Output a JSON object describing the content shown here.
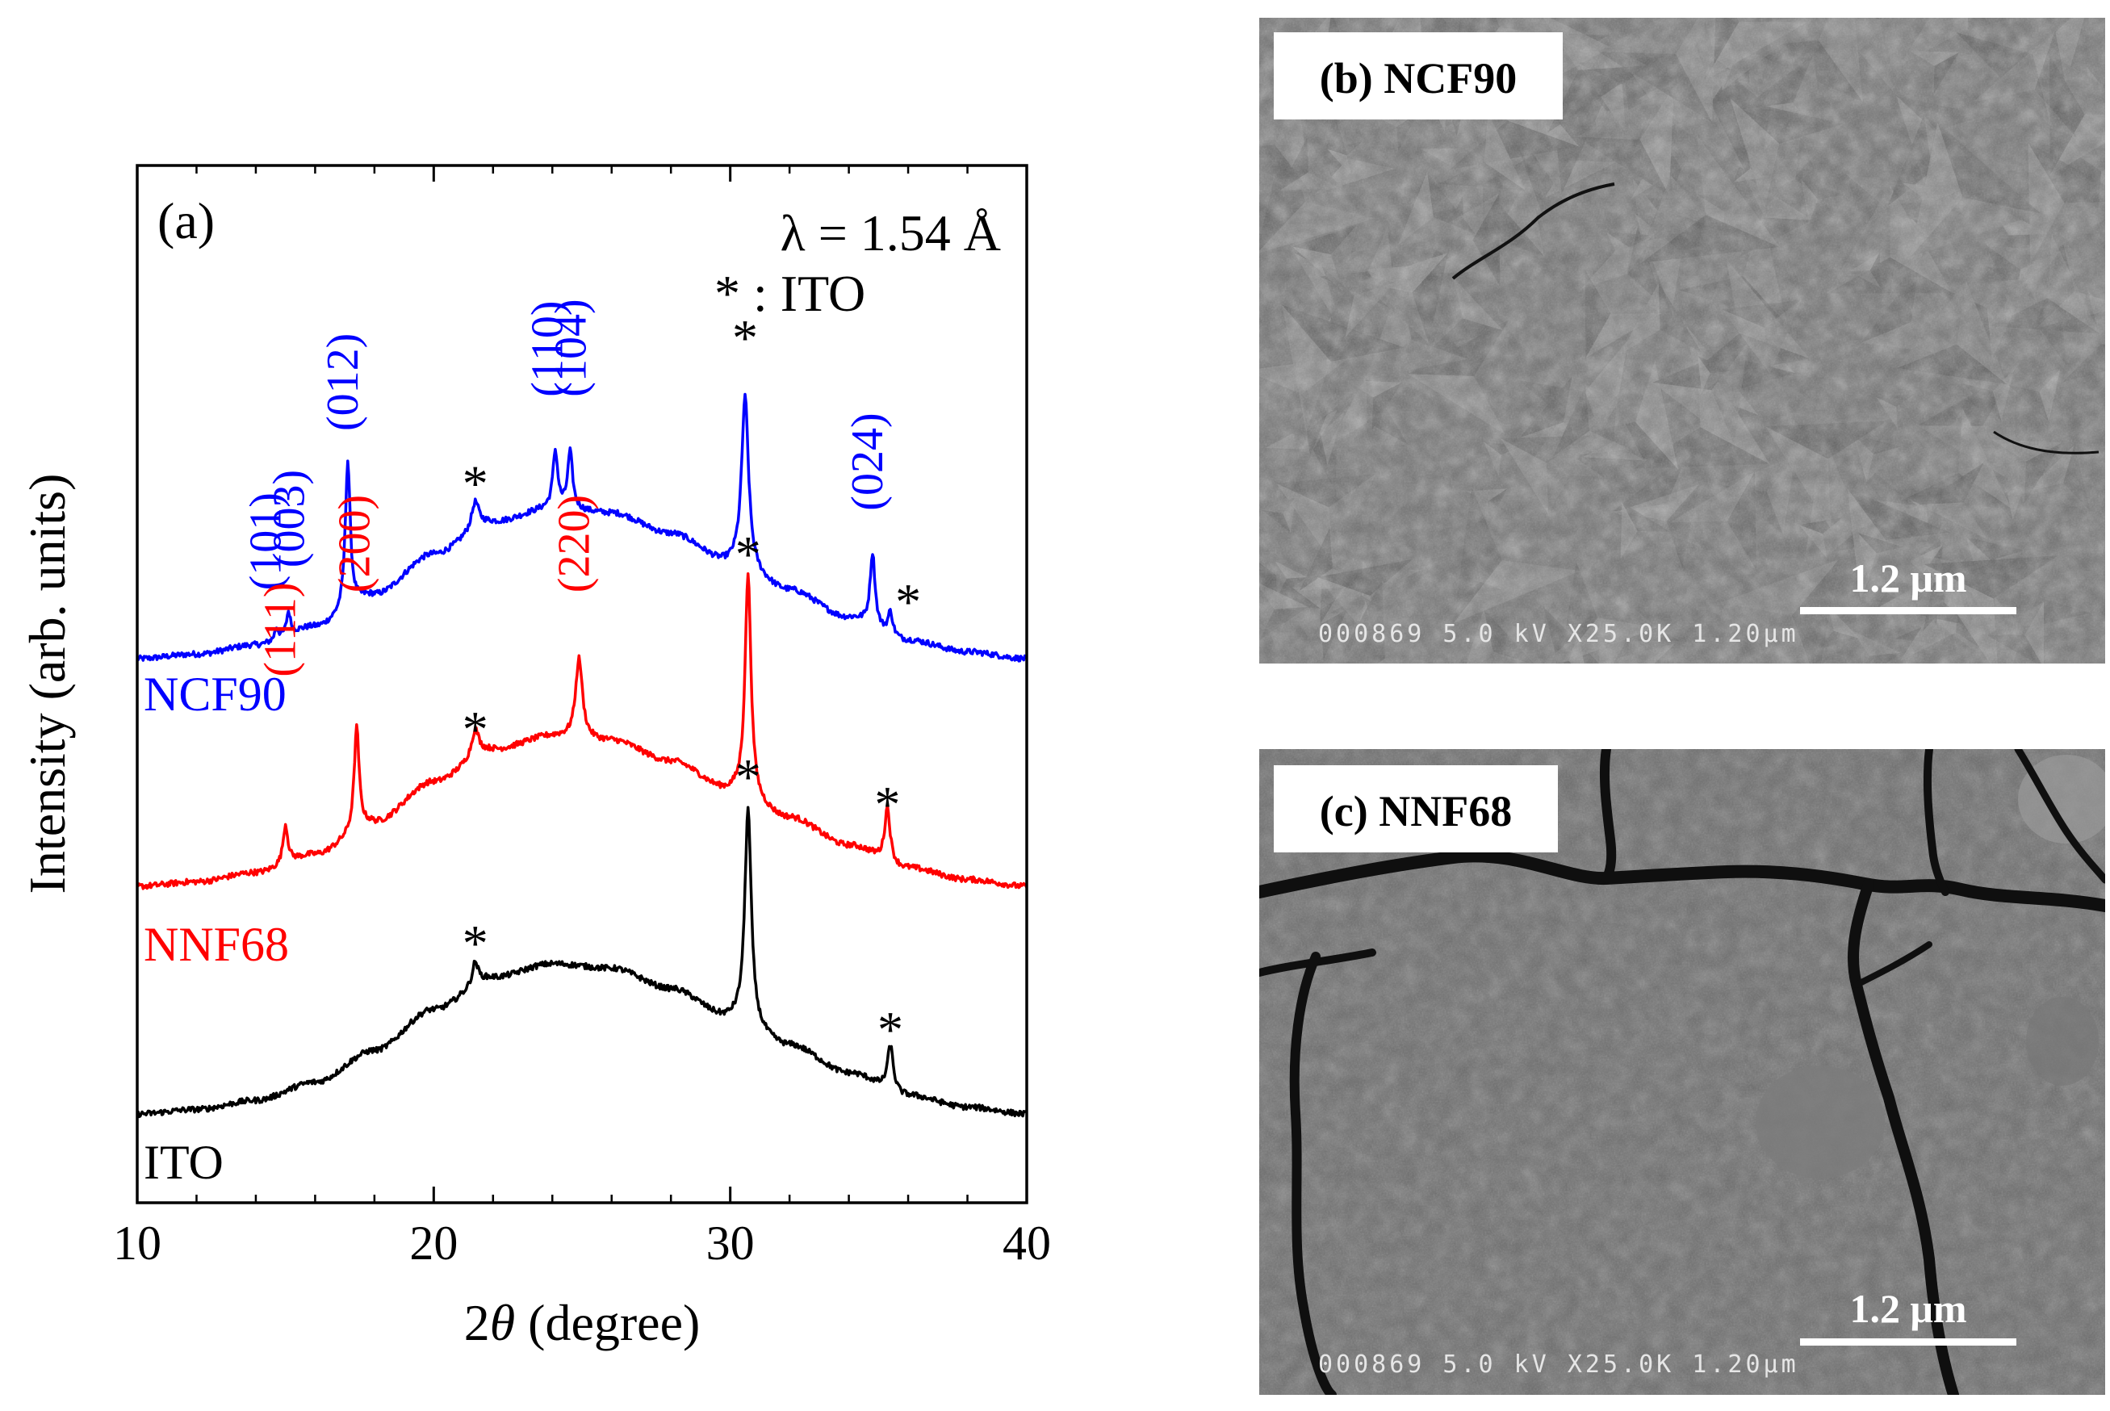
{
  "chart_data": {
    "type": "line",
    "panel_label": "(a)",
    "xlabel_prefix": "2",
    "xlabel_theta": "θ",
    "xlabel_suffix": " (degree)",
    "ylabel": "Intensity (arb. units)",
    "xlim": [
      10,
      40
    ],
    "xticks": [
      10,
      20,
      30,
      40
    ],
    "xtick_labels": [
      "10",
      "20",
      "30",
      "40"
    ],
    "minor_xticks": [
      12,
      14,
      16,
      18,
      22,
      24,
      26,
      28,
      32,
      34,
      36,
      38
    ],
    "annotations": [
      "λ = 1.54 Å",
      "* : ITO"
    ],
    "series": [
      {
        "name": "NCF90",
        "color": "#0000ff",
        "offset": 2.0,
        "baseline": [
          [
            10,
            0.0
          ],
          [
            12,
            0.02
          ],
          [
            14,
            0.06
          ],
          [
            16,
            0.14
          ],
          [
            18,
            0.28
          ],
          [
            20,
            0.46
          ],
          [
            22,
            0.6
          ],
          [
            24,
            0.66
          ],
          [
            26,
            0.64
          ],
          [
            28,
            0.55
          ],
          [
            30,
            0.42
          ],
          [
            32,
            0.3
          ],
          [
            34,
            0.18
          ],
          [
            36,
            0.08
          ],
          [
            38,
            0.03
          ],
          [
            40,
            0.0
          ]
        ],
        "peaks": [
          [
            14.7,
            0.05,
            0.08
          ],
          [
            15.1,
            0.1,
            0.08
          ],
          [
            17.1,
            0.65,
            0.1
          ],
          [
            21.4,
            0.12,
            0.15
          ],
          [
            24.1,
            0.25,
            0.1
          ],
          [
            24.6,
            0.25,
            0.1
          ],
          [
            30.5,
            0.75,
            0.14
          ],
          [
            34.8,
            0.32,
            0.1
          ],
          [
            35.4,
            0.1,
            0.1
          ]
        ],
        "peak_labels": [
          {
            "text": "(101)",
            "x": 14.5,
            "y_top": 2.3
          },
          {
            "text": "(003)",
            "x": 15.3,
            "y_top": 2.4
          },
          {
            "text": "(012)",
            "x": 17.1,
            "y_top": 3.0
          },
          {
            "text": "(110)",
            "x": 24.0,
            "y_top": 3.15
          },
          {
            "text": "(104)",
            "x": 24.8,
            "y_top": 3.15
          },
          {
            "text": "(024)",
            "x": 34.8,
            "y_top": 2.65
          }
        ],
        "ito_marks": [
          {
            "x": 21.4,
            "y": 2.8
          },
          {
            "x": 30.5,
            "y": 3.44
          },
          {
            "x": 36.0,
            "y": 2.28
          }
        ]
      },
      {
        "name": "NNF68",
        "color": "#ff0000",
        "offset": 1.0,
        "baseline": [
          [
            10,
            0.0
          ],
          [
            12,
            0.02
          ],
          [
            14,
            0.06
          ],
          [
            16,
            0.14
          ],
          [
            18,
            0.28
          ],
          [
            20,
            0.46
          ],
          [
            22,
            0.6
          ],
          [
            24,
            0.66
          ],
          [
            26,
            0.64
          ],
          [
            28,
            0.55
          ],
          [
            30,
            0.42
          ],
          [
            32,
            0.3
          ],
          [
            34,
            0.18
          ],
          [
            36,
            0.08
          ],
          [
            38,
            0.03
          ],
          [
            40,
            0.0
          ]
        ],
        "peaks": [
          [
            15.0,
            0.17,
            0.1
          ],
          [
            17.4,
            0.45,
            0.1
          ],
          [
            21.4,
            0.12,
            0.15
          ],
          [
            24.9,
            0.35,
            0.14
          ],
          [
            30.6,
            0.98,
            0.12
          ],
          [
            35.3,
            0.24,
            0.11
          ]
        ],
        "peak_labels": [
          {
            "text": "(111)",
            "x": 15.0,
            "y_top": 1.92
          },
          {
            "text": "(200)",
            "x": 17.5,
            "y_top": 2.29
          },
          {
            "text": "(220)",
            "x": 24.9,
            "y_top": 2.29
          }
        ],
        "ito_marks": [
          {
            "x": 21.4,
            "y": 1.72
          },
          {
            "x": 30.6,
            "y": 2.49
          },
          {
            "x": 35.3,
            "y": 1.39
          }
        ]
      },
      {
        "name": "ITO",
        "color": "#000000",
        "offset": 0.0,
        "baseline": [
          [
            10,
            0.0
          ],
          [
            12,
            0.02
          ],
          [
            14,
            0.06
          ],
          [
            16,
            0.14
          ],
          [
            18,
            0.28
          ],
          [
            20,
            0.46
          ],
          [
            22,
            0.6
          ],
          [
            24,
            0.66
          ],
          [
            26,
            0.64
          ],
          [
            28,
            0.55
          ],
          [
            30,
            0.42
          ],
          [
            32,
            0.3
          ],
          [
            34,
            0.18
          ],
          [
            36,
            0.08
          ],
          [
            38,
            0.03
          ],
          [
            40,
            0.0
          ]
        ],
        "peaks": [
          [
            21.4,
            0.1,
            0.12
          ],
          [
            30.6,
            0.95,
            0.13
          ],
          [
            35.4,
            0.2,
            0.12
          ]
        ],
        "peak_labels": [],
        "ito_marks": [
          {
            "x": 21.4,
            "y": 0.78
          },
          {
            "x": 30.6,
            "y": 1.51
          },
          {
            "x": 35.4,
            "y": 0.4
          }
        ]
      }
    ]
  },
  "sem_panels": [
    {
      "label": "(b) NCF90",
      "scale_bar_label": "1.2 μm",
      "info_text": "000869  5.0  kV  X25.0K  1.20μm",
      "texture": "faceted-pyramidal-grains"
    },
    {
      "label": "(c) NNF68",
      "scale_bar_label": "1.2 μm",
      "info_text": "000869  5.0  kV  X25.0K  1.20μm",
      "texture": "cracked-smooth-film"
    }
  ],
  "colors": {
    "ncf90": "#0000ff",
    "nnf68": "#ff0000",
    "ito": "#000000",
    "sem_background": "#6e6e6e"
  }
}
